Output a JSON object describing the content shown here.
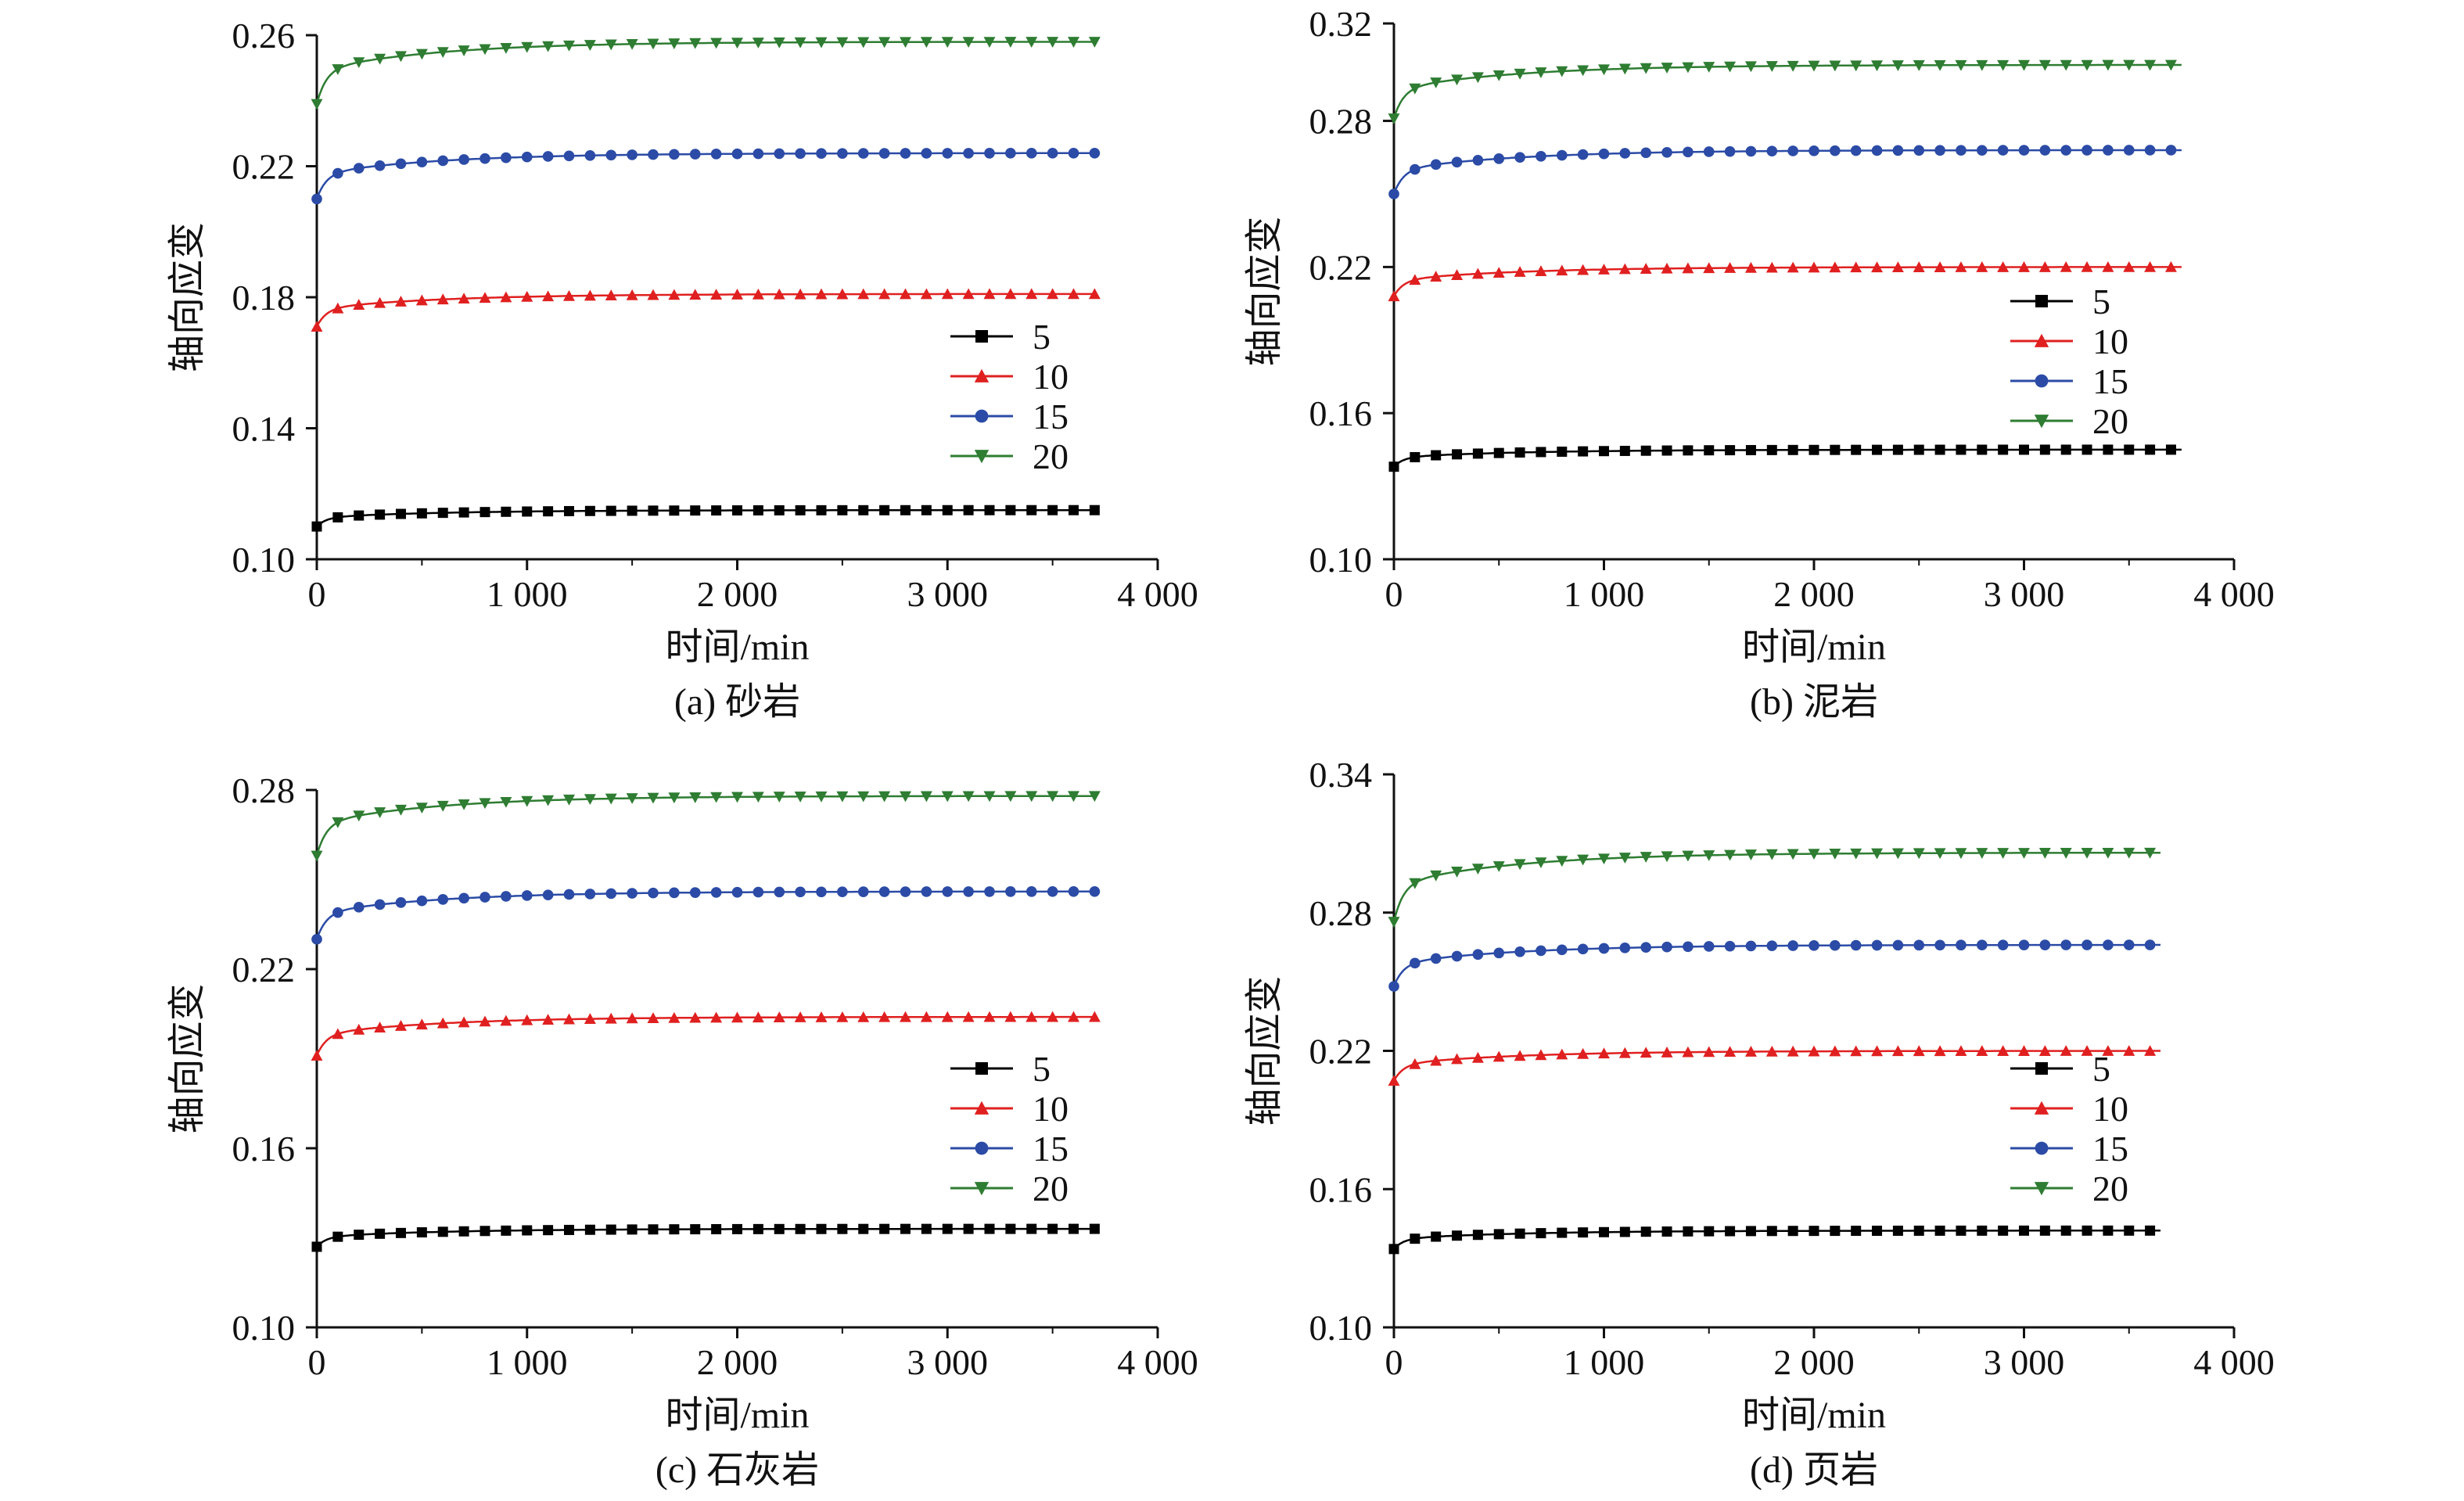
{
  "figure": {
    "panels_layout": "2x2 grid"
  },
  "chart_data": [
    {
      "type": "line",
      "caption": "(a) 砂岩",
      "xlabel": "时间/min",
      "ylabel": "轴向应变",
      "xlim": [
        0,
        4000
      ],
      "ylim": [
        0.1,
        0.26
      ],
      "xticks": [
        0,
        1000,
        2000,
        3000,
        4000
      ],
      "xtick_labels": [
        "0",
        "1 000",
        "2 000",
        "3 000",
        "4 000"
      ],
      "yticks": [
        0.1,
        0.14,
        0.18,
        0.22,
        0.26
      ],
      "ytick_labels": [
        "0.10",
        "0.14",
        "0.18",
        "0.22",
        "0.26"
      ],
      "grid": false,
      "legend_position": "right-middle",
      "series": [
        {
          "name": "5",
          "color": "#000000",
          "marker": "square",
          "start": 0.11,
          "end": 0.115
        },
        {
          "name": "10",
          "color": "#e02020",
          "marker": "triangle-up",
          "start": 0.171,
          "end": 0.181
        },
        {
          "name": "15",
          "color": "#2b4ba6",
          "marker": "circle",
          "start": 0.21,
          "end": 0.224
        },
        {
          "name": "20",
          "color": "#2e7d32",
          "marker": "triangle-down",
          "start": 0.239,
          "end": 0.258
        }
      ],
      "x_end": 3700
    },
    {
      "type": "line",
      "caption": "(b) 泥岩",
      "xlabel": "时间/min",
      "ylabel": "轴向应变",
      "xlim": [
        0,
        4000
      ],
      "ylim": [
        0.1,
        0.32
      ],
      "xticks": [
        0,
        1000,
        2000,
        3000,
        4000
      ],
      "xtick_labels": [
        "0",
        "1 000",
        "2 000",
        "3 000",
        "4 000"
      ],
      "yticks": [
        0.1,
        0.16,
        0.22,
        0.28,
        0.32
      ],
      "ytick_labels": [
        "0.10",
        "0.16",
        "0.22",
        "0.28",
        "0.32"
      ],
      "grid": false,
      "legend_position": "right-middle",
      "series": [
        {
          "name": "5",
          "color": "#000000",
          "marker": "square",
          "start": 0.138,
          "end": 0.145
        },
        {
          "name": "10",
          "color": "#e02020",
          "marker": "triangle-up",
          "start": 0.208,
          "end": 0.22
        },
        {
          "name": "15",
          "color": "#2b4ba6",
          "marker": "circle",
          "start": 0.25,
          "end": 0.268
        },
        {
          "name": "20",
          "color": "#2e7d32",
          "marker": "triangle-down",
          "start": 0.281,
          "end": 0.303
        }
      ],
      "x_end": 3750
    },
    {
      "type": "line",
      "caption": "(c) 石灰岩",
      "xlabel": "时间/min",
      "ylabel": "轴向应变",
      "xlim": [
        0,
        4000
      ],
      "ylim": [
        0.1,
        0.28
      ],
      "xticks": [
        0,
        1000,
        2000,
        3000,
        4000
      ],
      "xtick_labels": [
        "0",
        "1 000",
        "2 000",
        "3 000",
        "4 000"
      ],
      "yticks": [
        0.1,
        0.16,
        0.22,
        0.28
      ],
      "ytick_labels": [
        "0.10",
        "0.16",
        "0.22",
        "0.28"
      ],
      "grid": false,
      "legend_position": "right-middle",
      "series": [
        {
          "name": "5",
          "color": "#000000",
          "marker": "square",
          "start": 0.127,
          "end": 0.133
        },
        {
          "name": "10",
          "color": "#e02020",
          "marker": "triangle-up",
          "start": 0.191,
          "end": 0.204
        },
        {
          "name": "15",
          "color": "#2b4ba6",
          "marker": "circle",
          "start": 0.23,
          "end": 0.246
        },
        {
          "name": "20",
          "color": "#2e7d32",
          "marker": "triangle-down",
          "start": 0.258,
          "end": 0.278
        }
      ],
      "x_end": 3700
    },
    {
      "type": "line",
      "caption": "(d) 页岩",
      "xlabel": "时间/min",
      "ylabel": "轴向应变",
      "xlim": [
        0,
        4000
      ],
      "ylim": [
        0.1,
        0.34
      ],
      "xticks": [
        0,
        1000,
        2000,
        3000,
        4000
      ],
      "xtick_labels": [
        "0",
        "1 000",
        "2 000",
        "3 000",
        "4 000"
      ],
      "yticks": [
        0.1,
        0.16,
        0.22,
        0.28,
        0.34
      ],
      "ytick_labels": [
        "0.10",
        "0.16",
        "0.22",
        "0.28",
        "0.34"
      ],
      "grid": false,
      "legend_position": "right-middle",
      "series": [
        {
          "name": "5",
          "color": "#000000",
          "marker": "square",
          "start": 0.134,
          "end": 0.142
        },
        {
          "name": "10",
          "color": "#e02020",
          "marker": "triangle-up",
          "start": 0.207,
          "end": 0.22
        },
        {
          "name": "15",
          "color": "#2b4ba6",
          "marker": "circle",
          "start": 0.248,
          "end": 0.266
        },
        {
          "name": "20",
          "color": "#2e7d32",
          "marker": "triangle-down",
          "start": 0.276,
          "end": 0.306
        }
      ],
      "x_end": 3650
    }
  ]
}
